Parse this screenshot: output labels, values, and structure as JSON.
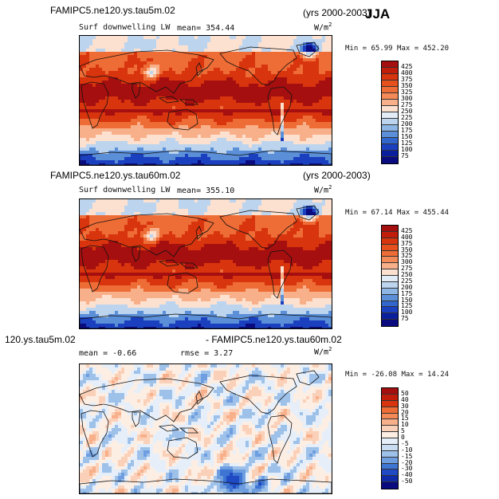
{
  "season": "JJA",
  "panels": [
    {
      "title_left": "FAMIPC5.ne120.ys.tau5m.02",
      "title_right": "(yrs 2000-2003)",
      "variable": "Surf downwelling LW",
      "stat_text": "mean= 354.44",
      "units_base": "W/m",
      "units_exp": "2",
      "minmax_text": "Min =  65.99 Max = 452.20"
    },
    {
      "title_left": "FAMIPC5.ne120.ys.tau60m.02",
      "title_right": "(yrs 2000-2003)",
      "variable": "Surf downwelling LW",
      "stat_text": "mean= 355.10",
      "units_base": "W/m",
      "units_exp": "2",
      "minmax_text": "Min =  67.14 Max = 455.44"
    },
    {
      "title_left": "120.ys.tau5m.02",
      "title_right": "- FAMIPC5.ne120.ys.tau60m.02",
      "stat_mean": "mean =  -0.66",
      "stat_rmse": "rmse =   3.27",
      "units_base": "W/m",
      "units_exp": "2",
      "minmax_text": "Min = -26.08 Max =  14.24"
    }
  ],
  "chart_data": [
    {
      "type": "heatmap",
      "title": "FAMIPC5.ne120.ys.tau5m.02 Surf downwelling LW (yrs 2000-2003) JJA",
      "units": "W/m2",
      "mean": 354.44,
      "min": 65.99,
      "max": 452.2,
      "colorbar_levels": [
        "425",
        "400",
        "375",
        "350",
        "325",
        "300",
        "275",
        "250",
        "225",
        "200",
        "175",
        "150",
        "125",
        "100",
        "75"
      ],
      "colorbar_colors": [
        "#a50f0f",
        "#c21d0a",
        "#d8340e",
        "#e5501c",
        "#ee6c35",
        "#f48a58",
        "#f8b08a",
        "#fde1d0",
        "#e2ecf7",
        "#bcd4ee",
        "#8eb6e4",
        "#5b8fd8",
        "#3366cc",
        "#1a3fbf",
        "#0a1f9e",
        "#0b0b80"
      ]
    },
    {
      "type": "heatmap",
      "title": "FAMIPC5.ne120.ys.tau60m.02 Surf downwelling LW (yrs 2000-2003) JJA",
      "units": "W/m2",
      "mean": 355.1,
      "min": 67.14,
      "max": 455.44,
      "colorbar_levels": [
        "425",
        "400",
        "375",
        "350",
        "325",
        "300",
        "275",
        "250",
        "225",
        "200",
        "175",
        "150",
        "125",
        "100",
        "75"
      ],
      "colorbar_colors": [
        "#a50f0f",
        "#c21d0a",
        "#d8340e",
        "#e5501c",
        "#ee6c35",
        "#f48a58",
        "#f8b08a",
        "#fde1d0",
        "#e2ecf7",
        "#bcd4ee",
        "#8eb6e4",
        "#5b8fd8",
        "#3366cc",
        "#1a3fbf",
        "#0a1f9e",
        "#0b0b80"
      ]
    },
    {
      "type": "heatmap",
      "title": "120.ys.tau5m.02 - FAMIPC5.ne120.ys.tau60m.02",
      "units": "W/m2",
      "mean": -0.66,
      "rmse": 3.27,
      "min": -26.08,
      "max": 14.24,
      "colorbar_levels": [
        "50",
        "40",
        "30",
        "20",
        "15",
        "10",
        "5",
        "0",
        "-5",
        "-10",
        "-15",
        "-20",
        "-30",
        "-40",
        "-50"
      ],
      "colorbar_colors": [
        "#a50f0f",
        "#c21d0a",
        "#d8340e",
        "#ee6c35",
        "#f48a58",
        "#f8b08a",
        "#fbd0b8",
        "#fdeee4",
        "#e6eff9",
        "#c9dcf2",
        "#9ec1ea",
        "#6f9ee0",
        "#3e74d2",
        "#1f4ac3",
        "#0f2ba8",
        "#0b0b80"
      ]
    }
  ]
}
